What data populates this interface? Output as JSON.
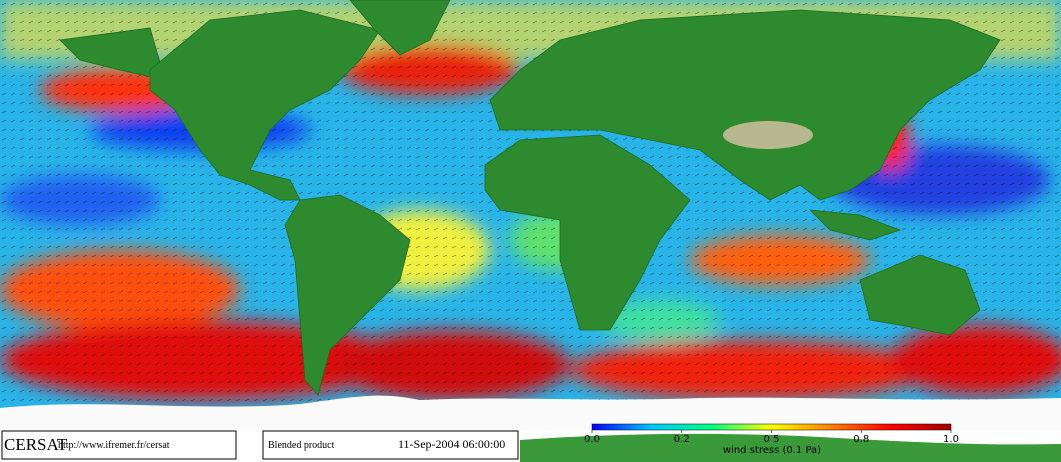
{
  "footer": {
    "logo": "CERSAT",
    "url": "http://www.ifremer.fr/cersat",
    "product": "Blended product",
    "date": "11-Sep-2004 06:00:00"
  },
  "colorbar": {
    "label": "wind stress (0.1 Pa)",
    "range": [
      0,
      1
    ],
    "ticks": [
      {
        "value": 0,
        "label": "0.0"
      },
      0.2,
      0.5,
      0.8,
      {
        "value": 1,
        "label": "1.0"
      }
    ],
    "colors": [
      "#0000ff",
      "#00c8ff",
      "#00ff80",
      "#ffff00",
      "#ff8000",
      "#ff0000",
      "#a00000"
    ]
  }
}
